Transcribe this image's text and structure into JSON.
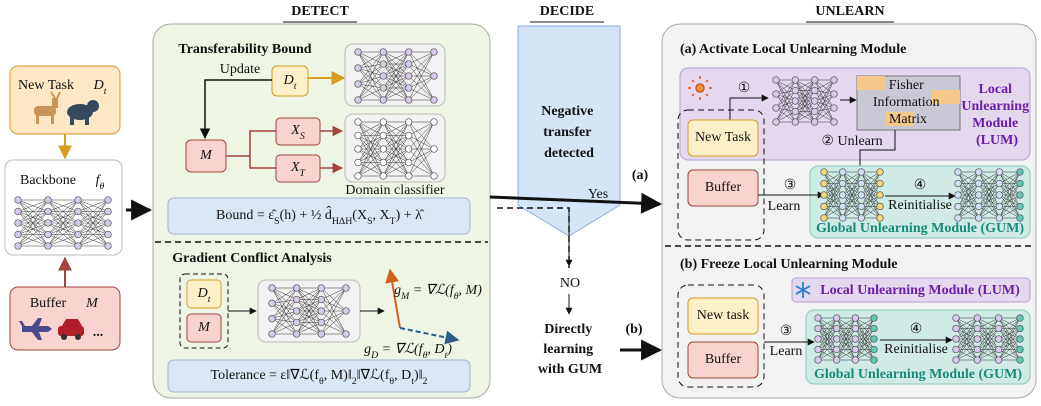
{
  "headers": {
    "detect": "DETECT",
    "decide": "DECIDE",
    "unlearn": "UNLEARN"
  },
  "input": {
    "new_task": "New Task",
    "new_task_symbol": [
      {
        "t": "D"
      },
      {
        "t": "t",
        "sub": true
      }
    ],
    "backbone": "Backbone",
    "backbone_symbol": [
      {
        "t": "f"
      },
      {
        "t": "θ",
        "sub": true
      }
    ],
    "buffer": "Buffer",
    "buffer_symbol": "M",
    "more": "..."
  },
  "detect": {
    "transfer_title": "Transferability Bound",
    "update": "Update",
    "dt": [
      {
        "t": "D"
      },
      {
        "t": "t",
        "sub": true
      }
    ],
    "m": "M",
    "xs": [
      {
        "t": "X"
      },
      {
        "t": "S",
        "sub": true
      }
    ],
    "xt": [
      {
        "t": "X"
      },
      {
        "t": "T",
        "sub": true
      }
    ],
    "domain_classifier": "Domain classifier",
    "bound": [
      {
        "t": "Bound = ε̂"
      },
      {
        "t": "S",
        "sub": true
      },
      {
        "t": "(h) + ½ d̂"
      },
      {
        "t": "HΔH",
        "sub": true
      },
      {
        "t": "(X"
      },
      {
        "t": "S",
        "sub": true
      },
      {
        "t": ", X"
      },
      {
        "t": "T",
        "sub": true
      },
      {
        "t": ") + λ̂"
      }
    ],
    "gradient_title": "Gradient Conflict Analysis",
    "g_dt": [
      {
        "t": "D"
      },
      {
        "t": "t",
        "sub": true
      }
    ],
    "g_m": "M",
    "gm_formula": [
      {
        "t": "g"
      },
      {
        "t": "M",
        "sub": true
      },
      {
        "t": " = ∇ℒ(f"
      },
      {
        "t": "θ",
        "sub": true
      },
      {
        "t": ", M)"
      }
    ],
    "gd_formula": [
      {
        "t": "g"
      },
      {
        "t": "D",
        "sub": true
      },
      {
        "t": " = ∇ℒ(f"
      },
      {
        "t": "θ",
        "sub": true
      },
      {
        "t": ", D"
      },
      {
        "t": "t",
        "sub": true
      },
      {
        "t": ")"
      }
    ],
    "tolerance": [
      {
        "t": "Tolerance = ε‖∇ℒ(f"
      },
      {
        "t": "θ",
        "sub": true
      },
      {
        "t": ", M)‖"
      },
      {
        "t": "2",
        "sub": true
      },
      {
        "t": "‖∇ℒ(f"
      },
      {
        "t": "θ",
        "sub": true
      },
      {
        "t": ", D"
      },
      {
        "t": "t",
        "sub": true
      },
      {
        "t": ")‖"
      },
      {
        "t": "2",
        "sub": true
      }
    ]
  },
  "decide": {
    "negative": [
      "Negative",
      "transfer",
      "detected"
    ],
    "yes": "Yes",
    "no": "NO",
    "direct": [
      "Directly",
      "learning",
      "with GUM"
    ],
    "a": "(a)",
    "b": "(b)"
  },
  "unlearn": {
    "a_title": "(a) Activate Local Unlearning Module",
    "step1": "①",
    "fisher": [
      "Fisher",
      "Information",
      "Matrix"
    ],
    "lum": [
      "Local",
      "Unlearning",
      "Module",
      "(LUM)"
    ],
    "new_task": "New Task",
    "unlearn": "② Unlearn",
    "buffer": "Buffer",
    "step3": "③",
    "learn": "Learn",
    "step4": "④",
    "reinit": "Reinitialise",
    "gum": "Global Unlearning Module (GUM)",
    "b_title": "(b) Freeze Local Unlearning Module",
    "lum_frozen": "Local Unlearning Module (LUM)",
    "b_new_task": "New task",
    "b_buffer": "Buffer",
    "b_step3": "③",
    "b_learn": "Learn",
    "b_step4": "④",
    "b_reinit": "Reinitialise",
    "b_gum": "Global Unlearning Module (GUM)"
  }
}
